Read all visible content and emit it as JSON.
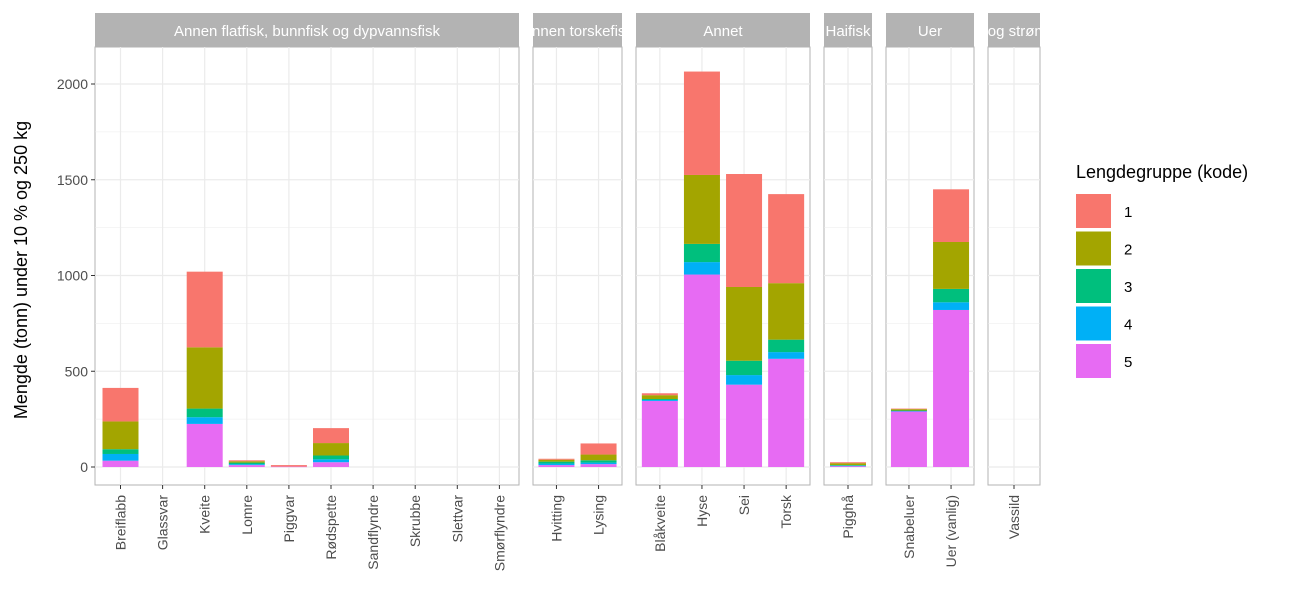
{
  "chart_data": {
    "type": "bar",
    "stacked": true,
    "faceted": true,
    "ylabel": "Mengde (tonn) under 10 % og 250 kg",
    "xlabel": "",
    "ylim": [
      0,
      2170
    ],
    "yticks": [
      0,
      500,
      1000,
      1500,
      2000
    ],
    "grid": true,
    "legend": {
      "title": "Lengdegruppe (kode)",
      "placement": "right",
      "entries": [
        {
          "label": "1",
          "color": "#F8766D"
        },
        {
          "label": "2",
          "color": "#A3A500"
        },
        {
          "label": "3",
          "color": "#00BF7D"
        },
        {
          "label": "4",
          "color": "#00B0F6"
        },
        {
          "label": "5",
          "color": "#E76BF3"
        }
      ]
    },
    "stack_order": [
      "5",
      "4",
      "3",
      "2",
      "1"
    ],
    "facets": [
      {
        "title": "Annen flatfisk, bunnfisk og dypvannsfisk",
        "bars": [
          {
            "category": "Breiflabb",
            "values": {
              "1": 175,
              "2": 145,
              "3": 25,
              "4": 35,
              "5": 33
            }
          },
          {
            "category": "Glassvar",
            "values": {}
          },
          {
            "category": "Kveite",
            "values": {
              "1": 395,
              "2": 320,
              "3": 45,
              "4": 35,
              "5": 225
            }
          },
          {
            "category": "Lomre",
            "values": {
              "1": 5,
              "2": 7,
              "3": 8,
              "4": 5,
              "5": 10
            }
          },
          {
            "category": "Piggvar",
            "values": {
              "1": 8,
              "5": 2
            }
          },
          {
            "category": "Rødspette",
            "values": {
              "1": 78,
              "2": 65,
              "3": 20,
              "4": 15,
              "5": 25
            }
          },
          {
            "category": "Sandflyndre",
            "values": {}
          },
          {
            "category": "Skrubbe",
            "values": {}
          },
          {
            "category": "Slettvar",
            "values": {}
          },
          {
            "category": "Smørflyndre",
            "values": {}
          }
        ]
      },
      {
        "title": "Annen torskefisk",
        "bars": [
          {
            "category": "Hvitting",
            "values": {
              "1": 5,
              "2": 10,
              "3": 10,
              "4": 8,
              "5": 10
            }
          },
          {
            "category": "Lysing",
            "values": {
              "1": 58,
              "2": 30,
              "3": 12,
              "4": 8,
              "5": 15
            }
          }
        ]
      },
      {
        "title": "Annet",
        "bars": [
          {
            "category": "Blåkveite",
            "values": {
              "1": 10,
              "2": 20,
              "3": 5,
              "4": 5,
              "5": 345
            }
          },
          {
            "category": "Hyse",
            "values": {
              "1": 540,
              "2": 360,
              "3": 95,
              "4": 65,
              "5": 1005
            }
          },
          {
            "category": "Sei",
            "values": {
              "1": 590,
              "2": 385,
              "3": 75,
              "4": 50,
              "5": 430
            }
          },
          {
            "category": "Torsk",
            "values": {
              "1": 465,
              "2": 295,
              "3": 65,
              "4": 35,
              "5": 565
            }
          }
        ]
      },
      {
        "title": "Haifisk",
        "bars": [
          {
            "category": "Pigghå",
            "values": {
              "1": 5,
              "2": 10,
              "3": 3,
              "4": 2,
              "5": 5
            }
          }
        ]
      },
      {
        "title": "Uer",
        "bars": [
          {
            "category": "Snabeluer",
            "values": {
              "1": 3,
              "2": 7,
              "3": 2,
              "4": 3,
              "5": 290
            }
          },
          {
            "category": "Uer (vanlig)",
            "values": {
              "1": 275,
              "2": 245,
              "3": 70,
              "4": 40,
              "5": 820
            }
          }
        ]
      },
      {
        "title": "Sild og strømsild",
        "bars": [
          {
            "category": "Vassild",
            "values": {}
          }
        ]
      }
    ]
  }
}
